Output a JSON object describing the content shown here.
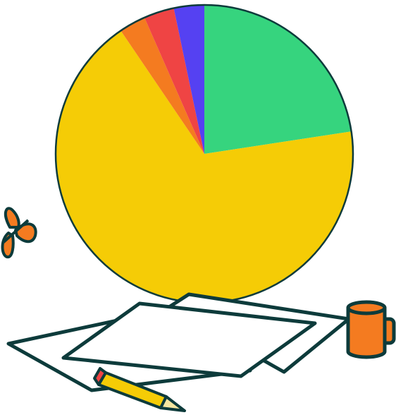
{
  "chart_data": {
    "type": "pie",
    "values": [
      22.6,
      67.9,
      2.9,
      3.3,
      3.3
    ],
    "colors": [
      "#36d47e",
      "#f5cc06",
      "#f47b20",
      "#ef4444",
      "#5541f2"
    ]
  }
}
